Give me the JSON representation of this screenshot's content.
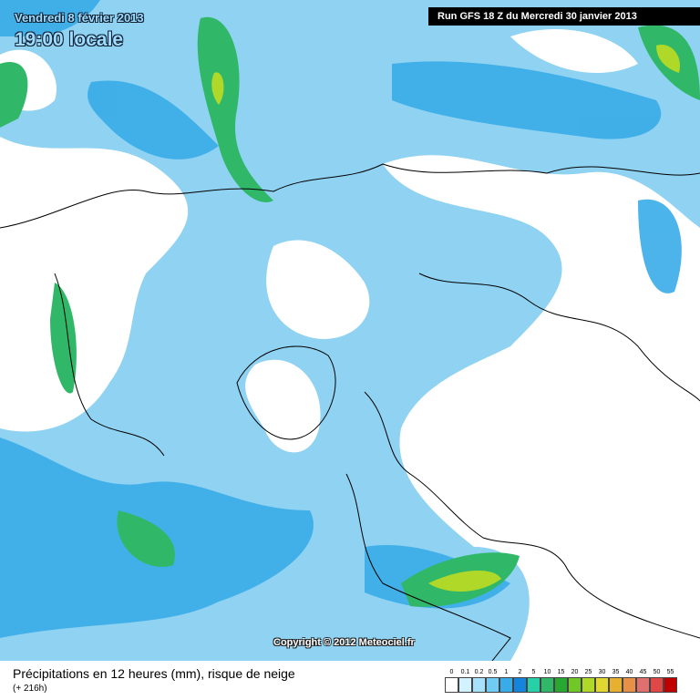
{
  "header": {
    "date": "Vendredi 8 février 2013",
    "time": "19:00 locale",
    "run": "Run GFS 18 Z du Mercredi 30 janvier 2013"
  },
  "copyright": "Copyright © 2012 Meteociel.fr",
  "footer": {
    "title": "Précipitations en 12 heures (mm), risque de neige",
    "subtitle": "(+ 216h)"
  },
  "legend": [
    {
      "label": 0,
      "color": "#ffffff"
    },
    {
      "label": 0.1,
      "color": "#d2f2ff"
    },
    {
      "label": 0.2,
      "color": "#a8e2fa"
    },
    {
      "label": 0.5,
      "color": "#70ccf2"
    },
    {
      "label": 1,
      "color": "#38ace8"
    },
    {
      "label": 2,
      "color": "#1484dc"
    },
    {
      "label": 5,
      "color": "#28d0a8"
    },
    {
      "label": 10,
      "color": "#30b868"
    },
    {
      "label": 15,
      "color": "#28a830"
    },
    {
      "label": 20,
      "color": "#70c828"
    },
    {
      "label": 25,
      "color": "#b0d828"
    },
    {
      "label": 30,
      "color": "#e0d830"
    },
    {
      "label": 35,
      "color": "#e8b030"
    },
    {
      "label": 40,
      "color": "#e89048"
    },
    {
      "label": 45,
      "color": "#e07070"
    },
    {
      "label": 50,
      "color": "#e04848"
    },
    {
      "label": 55,
      "color": "#c00000"
    }
  ]
}
